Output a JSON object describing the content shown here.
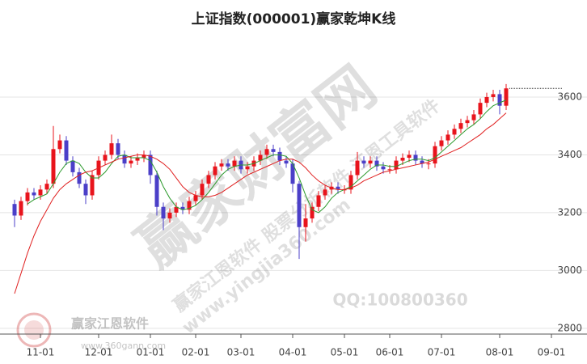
{
  "chart_data": {
    "type": "candlestick",
    "title": "上证指数(000001)赢家乾坤K线",
    "watermarks": [
      "赢家财富网",
      "赢家江恩软件 股票分析软件 江恩工具软件",
      "www.yingjia360.com",
      "QQ:100800360",
      "赢家江恩软件",
      "www.360gann.com"
    ],
    "categories": [
      null,
      null,
      null,
      null,
      "11-01",
      null,
      null,
      null,
      null,
      null,
      null,
      null,
      null,
      "12-01",
      null,
      null,
      null,
      null,
      null,
      null,
      null,
      "01-01",
      null,
      null,
      null,
      null,
      null,
      null,
      "02-01",
      null,
      null,
      null,
      null,
      null,
      null,
      "03-01",
      null,
      null,
      null,
      null,
      null,
      null,
      null,
      "04-01",
      null,
      null,
      null,
      null,
      null,
      null,
      null,
      "05-01",
      null,
      null,
      null,
      null,
      null,
      null,
      "06-01",
      null,
      null,
      null,
      null,
      null,
      null,
      null,
      "07-01",
      null,
      null,
      null,
      null,
      null,
      null,
      null,
      null,
      "08-01",
      null,
      null,
      null,
      null,
      null,
      null,
      null,
      "09-01",
      null,
      null,
      null,
      null
    ],
    "open": [
      3230,
      3190,
      3240,
      3270,
      3260,
      3280,
      3300,
      3420,
      3450,
      3380,
      3340,
      3300,
      3260,
      3330,
      3380,
      3400,
      3440,
      3400,
      3370,
      3380,
      3390,
      3400,
      3330,
      3220,
      3180,
      3200,
      3220,
      3210,
      3240,
      3260,
      3300,
      3330,
      3360,
      3370,
      3360,
      3380,
      3350,
      3360,
      3380,
      3400,
      3420,
      3410,
      3380,
      3370,
      3300,
      3150,
      3180,
      3220,
      3260,
      3280,
      3290,
      3280,
      3280,
      3330,
      3380,
      3370,
      3380,
      3360,
      3350,
      3350,
      3380,
      3390,
      3400,
      3380,
      3370,
      3370,
      3430,
      3450,
      3470,
      3490,
      3510,
      3520,
      3540,
      3580,
      3600,
      3610,
      3570,
      null,
      null,
      null,
      null,
      null,
      null,
      null,
      null,
      null,
      null,
      null
    ],
    "high": [
      3245,
      3255,
      3285,
      3285,
      3295,
      3315,
      3500,
      3470,
      3465,
      3395,
      3355,
      3315,
      3345,
      3395,
      3415,
      3470,
      3455,
      3415,
      3395,
      3405,
      3415,
      3415,
      3345,
      3235,
      3215,
      3235,
      3235,
      3255,
      3275,
      3315,
      3345,
      3375,
      3385,
      3385,
      3395,
      3395,
      3375,
      3395,
      3415,
      3435,
      3435,
      3425,
      3395,
      3385,
      3310,
      3230,
      3235,
      3275,
      3295,
      3305,
      3305,
      3295,
      3345,
      3410,
      3395,
      3395,
      3395,
      3375,
      3365,
      3395,
      3405,
      3415,
      3415,
      3395,
      3385,
      3445,
      3465,
      3485,
      3505,
      3525,
      3535,
      3555,
      3595,
      3615,
      3625,
      3625,
      3645,
      null,
      null,
      null,
      null,
      null,
      null,
      null,
      null,
      null,
      null,
      null
    ],
    "low": [
      3150,
      3175,
      3225,
      3245,
      3245,
      3265,
      3285,
      3405,
      3365,
      3325,
      3285,
      3230,
      3245,
      3315,
      3365,
      3385,
      3385,
      3355,
      3355,
      3365,
      3375,
      3300,
      3190,
      3140,
      3165,
      3185,
      3195,
      3195,
      3225,
      3245,
      3285,
      3315,
      3345,
      3345,
      3345,
      3335,
      3335,
      3345,
      3365,
      3385,
      3395,
      3365,
      3355,
      3270,
      3040,
      3100,
      3165,
      3205,
      3245,
      3265,
      3265,
      3265,
      3265,
      3315,
      3355,
      3355,
      3345,
      3335,
      3335,
      3335,
      3365,
      3375,
      3365,
      3355,
      3350,
      3355,
      3415,
      3435,
      3455,
      3475,
      3495,
      3505,
      3525,
      3565,
      3585,
      3540,
      3555,
      null,
      null,
      null,
      null,
      null,
      null,
      null,
      null,
      null,
      null,
      null
    ],
    "close": [
      3190,
      3240,
      3270,
      3260,
      3280,
      3300,
      3420,
      3450,
      3380,
      3340,
      3300,
      3260,
      3330,
      3380,
      3400,
      3440,
      3400,
      3370,
      3380,
      3390,
      3400,
      3330,
      3220,
      3180,
      3200,
      3220,
      3210,
      3240,
      3260,
      3300,
      3330,
      3360,
      3370,
      3360,
      3380,
      3350,
      3360,
      3380,
      3400,
      3420,
      3410,
      3380,
      3370,
      3300,
      3150,
      3180,
      3220,
      3260,
      3280,
      3290,
      3280,
      3280,
      3330,
      3380,
      3370,
      3380,
      3360,
      3350,
      3350,
      3380,
      3390,
      3400,
      3380,
      3370,
      3370,
      3430,
      3450,
      3470,
      3490,
      3510,
      3520,
      3540,
      3580,
      3600,
      3610,
      3570,
      3630,
      null,
      null,
      null,
      null,
      null,
      null,
      null,
      null,
      null,
      null,
      null
    ],
    "up_color": "#e8141c",
    "down_color": "#4b3fc8",
    "series": [
      {
        "color": "#2c9a2c",
        "values": [
          null,
          null,
          3230,
          3245,
          3255,
          3265,
          3300,
          3340,
          3370,
          3380,
          3370,
          3340,
          3320,
          3320,
          3340,
          3370,
          3395,
          3400,
          3390,
          3390,
          3390,
          3380,
          3340,
          3290,
          3250,
          3220,
          3210,
          3215,
          3225,
          3245,
          3270,
          3300,
          3330,
          3350,
          3360,
          3365,
          3365,
          3370,
          3380,
          3390,
          3400,
          3400,
          3395,
          3370,
          3320,
          3260,
          3210,
          3200,
          3220,
          3250,
          3270,
          3280,
          3290,
          3310,
          3330,
          3350,
          3365,
          3365,
          3360,
          3360,
          3370,
          3380,
          3385,
          3385,
          3380,
          3390,
          3410,
          3430,
          3450,
          3470,
          3490,
          3505,
          3525,
          3550,
          3570,
          3580,
          3590,
          null,
          null,
          null,
          null,
          null,
          null,
          null,
          null,
          null,
          null,
          null
        ]
      },
      {
        "color": "#e02020",
        "values": [
          2920,
          2990,
          3060,
          3120,
          3170,
          3210,
          3250,
          3280,
          3300,
          3315,
          3330,
          3340,
          3345,
          3355,
          3365,
          3375,
          3385,
          3390,
          3395,
          3400,
          3400,
          3395,
          3385,
          3370,
          3350,
          3320,
          3290,
          3270,
          3260,
          3255,
          3255,
          3260,
          3270,
          3285,
          3300,
          3315,
          3330,
          3340,
          3350,
          3360,
          3370,
          3380,
          3385,
          3385,
          3375,
          3355,
          3330,
          3310,
          3295,
          3285,
          3280,
          3280,
          3285,
          3295,
          3310,
          3320,
          3330,
          3340,
          3345,
          3350,
          3355,
          3360,
          3365,
          3370,
          3375,
          3385,
          3395,
          3405,
          3415,
          3425,
          3440,
          3455,
          3470,
          3490,
          3505,
          3525,
          3545,
          null,
          null,
          null,
          null,
          null,
          null,
          null,
          null,
          null,
          null,
          null
        ]
      }
    ],
    "ylim": [
      2780,
      3800
    ],
    "yticks": [
      2800,
      3000,
      3200,
      3400,
      3600
    ],
    "grid": true
  }
}
